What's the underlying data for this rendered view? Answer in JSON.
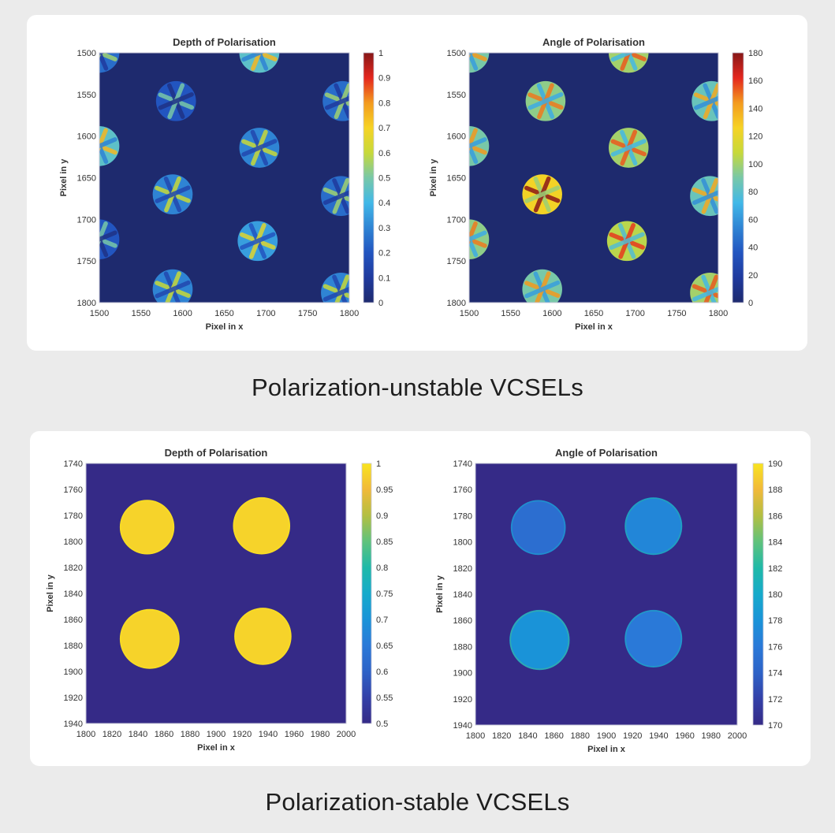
{
  "captions": {
    "top": "Polarization-unstable VCSELs",
    "bottom": "Polarization-stable VCSELs"
  },
  "chart_data": [
    {
      "type": "heatmap",
      "title": "Depth of Polarisation",
      "xlabel": "Pixel in x",
      "ylabel": "Pixel in y",
      "xlim": [
        1500,
        1800
      ],
      "ylim": [
        1500,
        1800
      ],
      "xticks": [
        "1500",
        "1550",
        "1600",
        "1650",
        "1700",
        "1750",
        "1800"
      ],
      "yticks": [
        "1500",
        "1550",
        "1600",
        "1650",
        "1700",
        "1750",
        "1800"
      ],
      "colormap": "jet",
      "clim": [
        0,
        1
      ],
      "cticks": [
        "0",
        "0.1",
        "0.2",
        "0.3",
        "0.4",
        "0.5",
        "0.6",
        "0.7",
        "0.8",
        "0.9",
        "1"
      ],
      "background_value": 0,
      "spots": [
        {
          "cx": 1500,
          "cy": 1500,
          "r": 24,
          "value": 0.25
        },
        {
          "cx": 1592,
          "cy": 1558,
          "r": 24,
          "value": 0.2
        },
        {
          "cx": 1692,
          "cy": 1500,
          "r": 24,
          "value": 0.45
        },
        {
          "cx": 1792,
          "cy": 1558,
          "r": 24,
          "value": 0.25
        },
        {
          "cx": 1500,
          "cy": 1612,
          "r": 24,
          "value": 0.45
        },
        {
          "cx": 1692,
          "cy": 1614,
          "r": 24,
          "value": 0.3
        },
        {
          "cx": 1588,
          "cy": 1670,
          "r": 24,
          "value": 0.3
        },
        {
          "cx": 1790,
          "cy": 1672,
          "r": 24,
          "value": 0.25
        },
        {
          "cx": 1500,
          "cy": 1724,
          "r": 24,
          "value": 0.2
        },
        {
          "cx": 1690,
          "cy": 1726,
          "r": 24,
          "value": 0.35
        },
        {
          "cx": 1588,
          "cy": 1784,
          "r": 24,
          "value": 0.3
        },
        {
          "cx": 1790,
          "cy": 1788,
          "r": 24,
          "value": 0.3
        }
      ]
    },
    {
      "type": "heatmap",
      "title": "Angle of Polarisation",
      "xlabel": "Pixel in x",
      "ylabel": "Pixel in y",
      "xlim": [
        1500,
        1800
      ],
      "ylim": [
        1500,
        1800
      ],
      "xticks": [
        "1500",
        "1550",
        "1600",
        "1650",
        "1700",
        "1750",
        "1800"
      ],
      "yticks": [
        "1500",
        "1550",
        "1600",
        "1650",
        "1700",
        "1750",
        "1800"
      ],
      "colormap": "jet",
      "clim": [
        0,
        180
      ],
      "cticks": [
        "0",
        "20",
        "40",
        "60",
        "80",
        "100",
        "120",
        "140",
        "160",
        "180"
      ],
      "background_value": 0,
      "spots": [
        {
          "cx": 1500,
          "cy": 1500,
          "r": 24,
          "value": 90
        },
        {
          "cx": 1592,
          "cy": 1558,
          "r": 24,
          "value": 95
        },
        {
          "cx": 1692,
          "cy": 1500,
          "r": 24,
          "value": 100
        },
        {
          "cx": 1792,
          "cy": 1558,
          "r": 24,
          "value": 85
        },
        {
          "cx": 1500,
          "cy": 1612,
          "r": 24,
          "value": 90
        },
        {
          "cx": 1692,
          "cy": 1614,
          "r": 24,
          "value": 100
        },
        {
          "cx": 1588,
          "cy": 1670,
          "r": 24,
          "value": 125
        },
        {
          "cx": 1790,
          "cy": 1672,
          "r": 24,
          "value": 85
        },
        {
          "cx": 1500,
          "cy": 1724,
          "r": 24,
          "value": 95
        },
        {
          "cx": 1690,
          "cy": 1726,
          "r": 24,
          "value": 105
        },
        {
          "cx": 1588,
          "cy": 1784,
          "r": 24,
          "value": 90
        },
        {
          "cx": 1790,
          "cy": 1788,
          "r": 24,
          "value": 100
        }
      ]
    },
    {
      "type": "heatmap",
      "title": "Depth of Polarisation",
      "xlabel": "Pixel in x",
      "ylabel": "Pixel in y",
      "xlim": [
        1800,
        2000
      ],
      "ylim": [
        1740,
        1940
      ],
      "xticks": [
        "1800",
        "1820",
        "1840",
        "1860",
        "1880",
        "1900",
        "1920",
        "1940",
        "1960",
        "1980",
        "2000"
      ],
      "yticks": [
        "1740",
        "1760",
        "1780",
        "1800",
        "1820",
        "1840",
        "1860",
        "1880",
        "1900",
        "1920",
        "1940"
      ],
      "colormap": "parula",
      "clim": [
        0.5,
        1
      ],
      "cticks": [
        "0.5",
        "0.55",
        "0.6",
        "0.65",
        "0.7",
        "0.75",
        "0.8",
        "0.85",
        "0.9",
        "0.95",
        "1"
      ],
      "background_value": 0.5,
      "spots": [
        {
          "cx": 1847,
          "cy": 1789,
          "r": 21,
          "value": 0.98
        },
        {
          "cx": 1935,
          "cy": 1788,
          "r": 22,
          "value": 0.98
        },
        {
          "cx": 1849,
          "cy": 1875,
          "r": 23,
          "value": 0.98
        },
        {
          "cx": 1936,
          "cy": 1873,
          "r": 22,
          "value": 0.98
        }
      ]
    },
    {
      "type": "heatmap",
      "title": "Angle of Polarisation",
      "xlabel": "Pixel in x",
      "ylabel": "Pixel in y",
      "xlim": [
        1800,
        2000
      ],
      "ylim": [
        1740,
        1940
      ],
      "xticks": [
        "1800",
        "1820",
        "1840",
        "1860",
        "1880",
        "1900",
        "1920",
        "1940",
        "1960",
        "1980",
        "2000"
      ],
      "yticks": [
        "1740",
        "1760",
        "1780",
        "1800",
        "1820",
        "1840",
        "1860",
        "1880",
        "1900",
        "1920",
        "1940"
      ],
      "colormap": "parula",
      "clim": [
        170,
        190
      ],
      "cticks": [
        "170",
        "172",
        "174",
        "176",
        "178",
        "180",
        "182",
        "184",
        "186",
        "188",
        "190"
      ],
      "background_value": 170,
      "spots": [
        {
          "cx": 1848,
          "cy": 1789,
          "r": 21,
          "value": 175
        },
        {
          "cx": 1936,
          "cy": 1788,
          "r": 22,
          "value": 177
        },
        {
          "cx": 1849,
          "cy": 1875,
          "r": 23,
          "value": 178
        },
        {
          "cx": 1936,
          "cy": 1874,
          "r": 22,
          "value": 176
        }
      ]
    }
  ]
}
